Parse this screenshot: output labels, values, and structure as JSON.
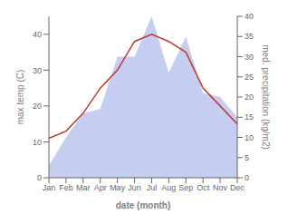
{
  "chart_data": {
    "type": "line",
    "categories": [
      "Jan",
      "Feb",
      "Mar",
      "Apr",
      "May",
      "Jun",
      "Jul",
      "Aug",
      "Sep",
      "Oct",
      "Nov",
      "Dec"
    ],
    "xlabel": "date (month)",
    "ylabel": "max temp (C)",
    "y2label": "med. precipitation (kg/m2)",
    "series": [
      {
        "type": "area",
        "axis": "y2",
        "color": "#c5cef0",
        "values": [
          3,
          10,
          16,
          17,
          30,
          30,
          40,
          26,
          35,
          21,
          20,
          15
        ]
      },
      {
        "type": "line",
        "color": "#c0392b",
        "values": [
          11,
          13,
          18,
          25,
          30,
          38,
          40,
          38,
          35,
          25,
          20,
          15
        ]
      }
    ],
    "ylim": [
      0,
      45
    ],
    "yticks": [
      0,
      10,
      20,
      30,
      40
    ],
    "y2lim": [
      0,
      40
    ],
    "y2ticks": [
      0,
      5,
      10,
      15,
      20,
      25,
      30,
      35,
      40
    ],
    "grid": false
  }
}
